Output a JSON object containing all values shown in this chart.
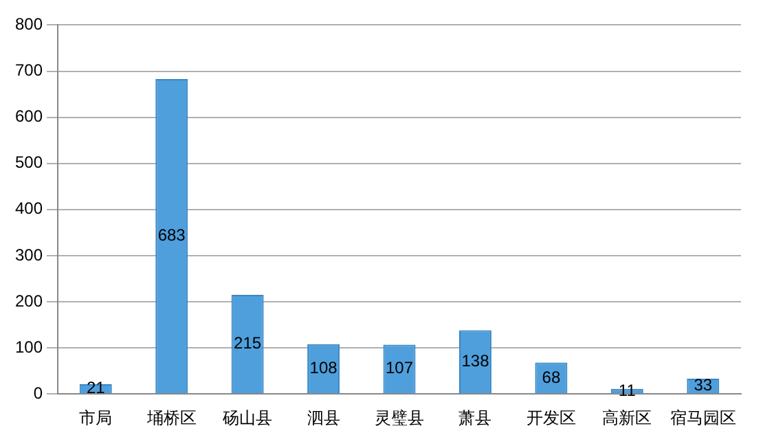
{
  "chart_data": {
    "type": "bar",
    "categories": [
      "市局",
      "埇桥区",
      "砀山县",
      "泗县",
      "灵璧县",
      "萧县",
      "开发区",
      "高新区",
      "宿马园区"
    ],
    "values": [
      21,
      683,
      215,
      108,
      107,
      138,
      68,
      11,
      33
    ],
    "color": "#4f9fdc",
    "ylim": [
      0,
      800
    ],
    "yticks": [
      0,
      100,
      200,
      300,
      400,
      500,
      600,
      700,
      800
    ],
    "grid": "y",
    "legend": false,
    "data_labels": true
  }
}
